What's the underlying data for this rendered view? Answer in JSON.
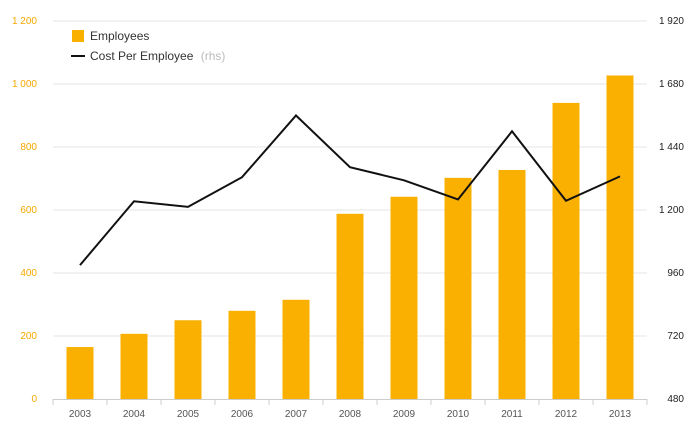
{
  "chart_data": {
    "type": "bar",
    "categories": [
      "2003",
      "2004",
      "2005",
      "2006",
      "2007",
      "2008",
      "2009",
      "2010",
      "2011",
      "2012",
      "2013"
    ],
    "series": [
      {
        "name": "Employees",
        "type": "bar",
        "axis": "left",
        "color": "#F9B000",
        "values": [
          165,
          207,
          250,
          280,
          315,
          588,
          642,
          702,
          727,
          940,
          1027
        ]
      },
      {
        "name": "Cost Per Employee",
        "name_suffix": "(rhs)",
        "type": "line",
        "axis": "right",
        "color": "#111111",
        "values": [
          990,
          1233,
          1212,
          1325,
          1560,
          1363,
          1313,
          1240,
          1500,
          1235,
          1328
        ]
      }
    ],
    "y_left": {
      "min": 0,
      "max": 1200,
      "ticks": [
        0,
        200,
        400,
        600,
        800,
        1000,
        1200
      ],
      "tick_labels": [
        "0",
        "200",
        "400",
        "600",
        "800",
        "1 000",
        "1 200"
      ]
    },
    "y_right": {
      "min": 480,
      "max": 1920,
      "ticks": [
        480,
        720,
        960,
        1200,
        1440,
        1680,
        1920
      ],
      "tick_labels": [
        "480",
        "720",
        "960",
        "1 200",
        "1 440",
        "1 680",
        "1 920"
      ]
    },
    "grid": true,
    "legend": "top-left",
    "colors": {
      "left_axis": "#F5A800",
      "right_axis": "#222222",
      "grid": "#e6e6e6",
      "x_axis": "#555555"
    }
  }
}
